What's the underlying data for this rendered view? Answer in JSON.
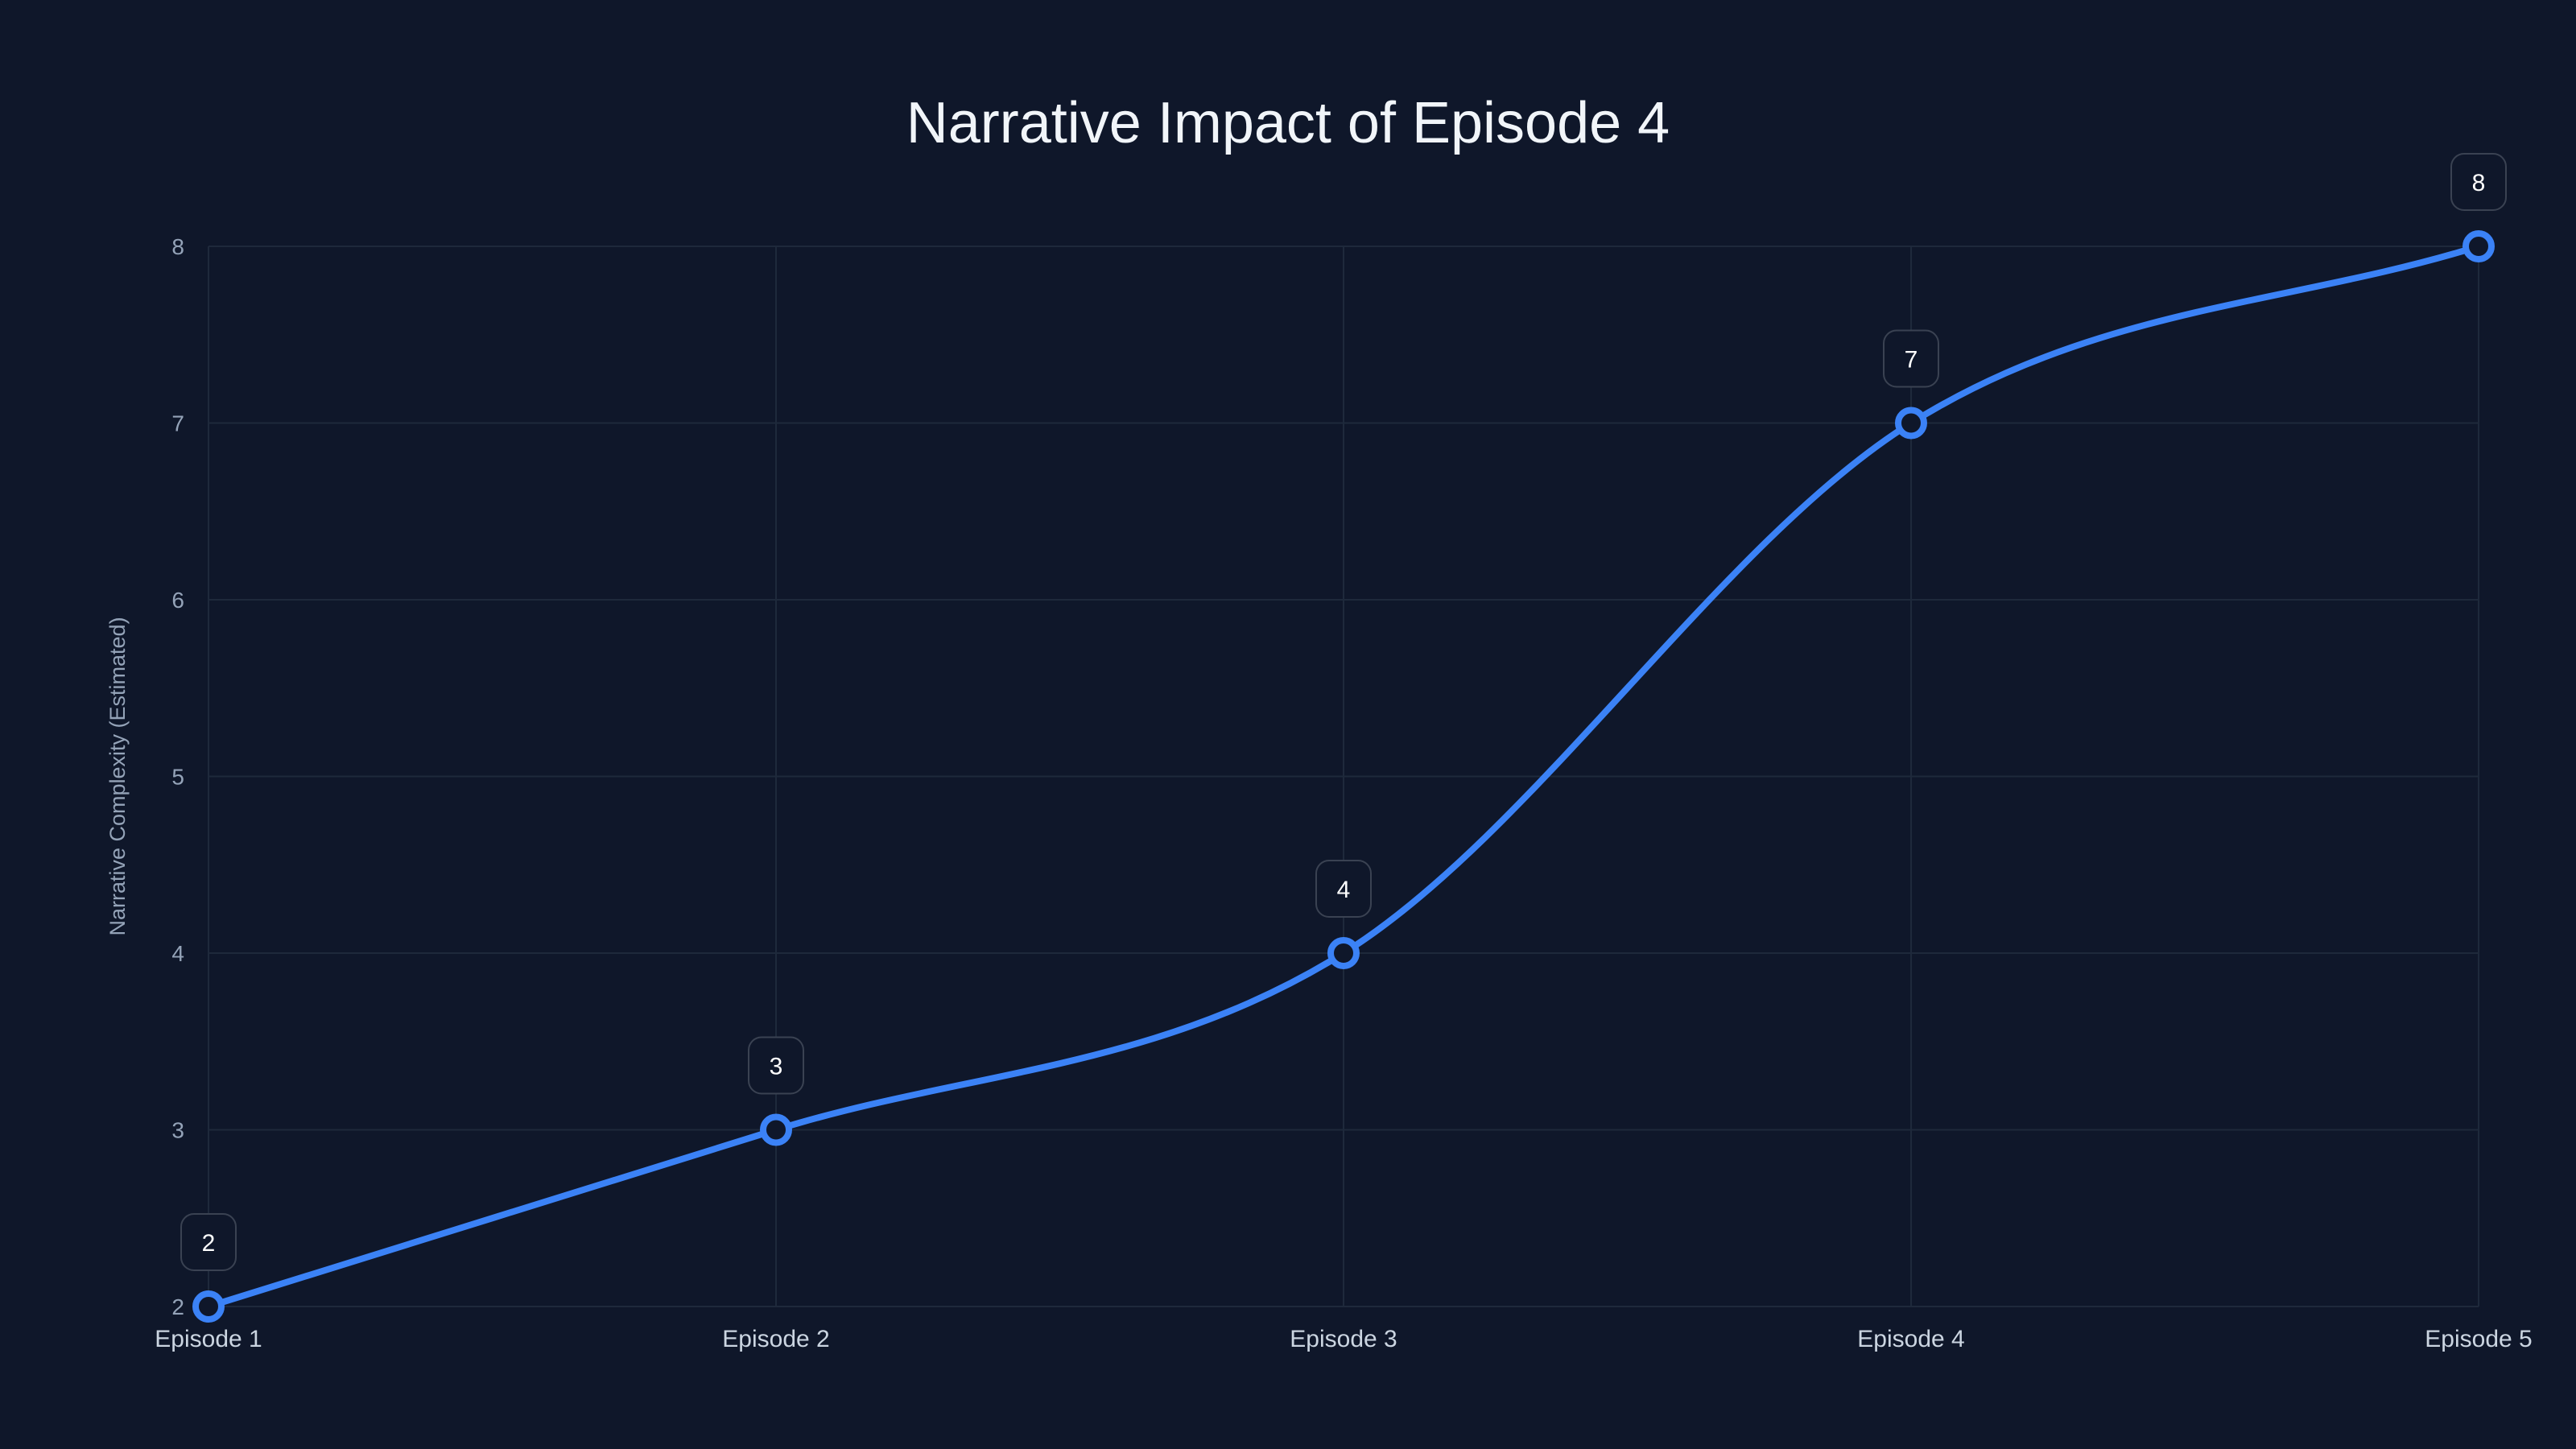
{
  "title": "Narrative Impact of Episode 4",
  "colors": {
    "background": "#0f172a",
    "line": "#3b82f6",
    "grid": "#1e293b",
    "label_box_border": "#3a4252",
    "tick_text": "#94a3b8",
    "xtick_text": "#cbd5e1"
  },
  "chart_data": {
    "type": "line",
    "title": "Narrative Impact of Episode 4",
    "xlabel": "",
    "ylabel": "Narrative Complexity (Estimated)",
    "categories": [
      "Episode 1",
      "Episode 2",
      "Episode 3",
      "Episode 4",
      "Episode 5"
    ],
    "series": [
      {
        "name": "Narrative Complexity",
        "values": [
          2,
          3,
          4,
          7,
          8
        ]
      }
    ],
    "ylim": [
      2,
      8
    ],
    "yticks": [
      2,
      3,
      4,
      5,
      6,
      7,
      8
    ],
    "grid": true,
    "legend": "none",
    "data_labels": true,
    "smooth": true
  }
}
